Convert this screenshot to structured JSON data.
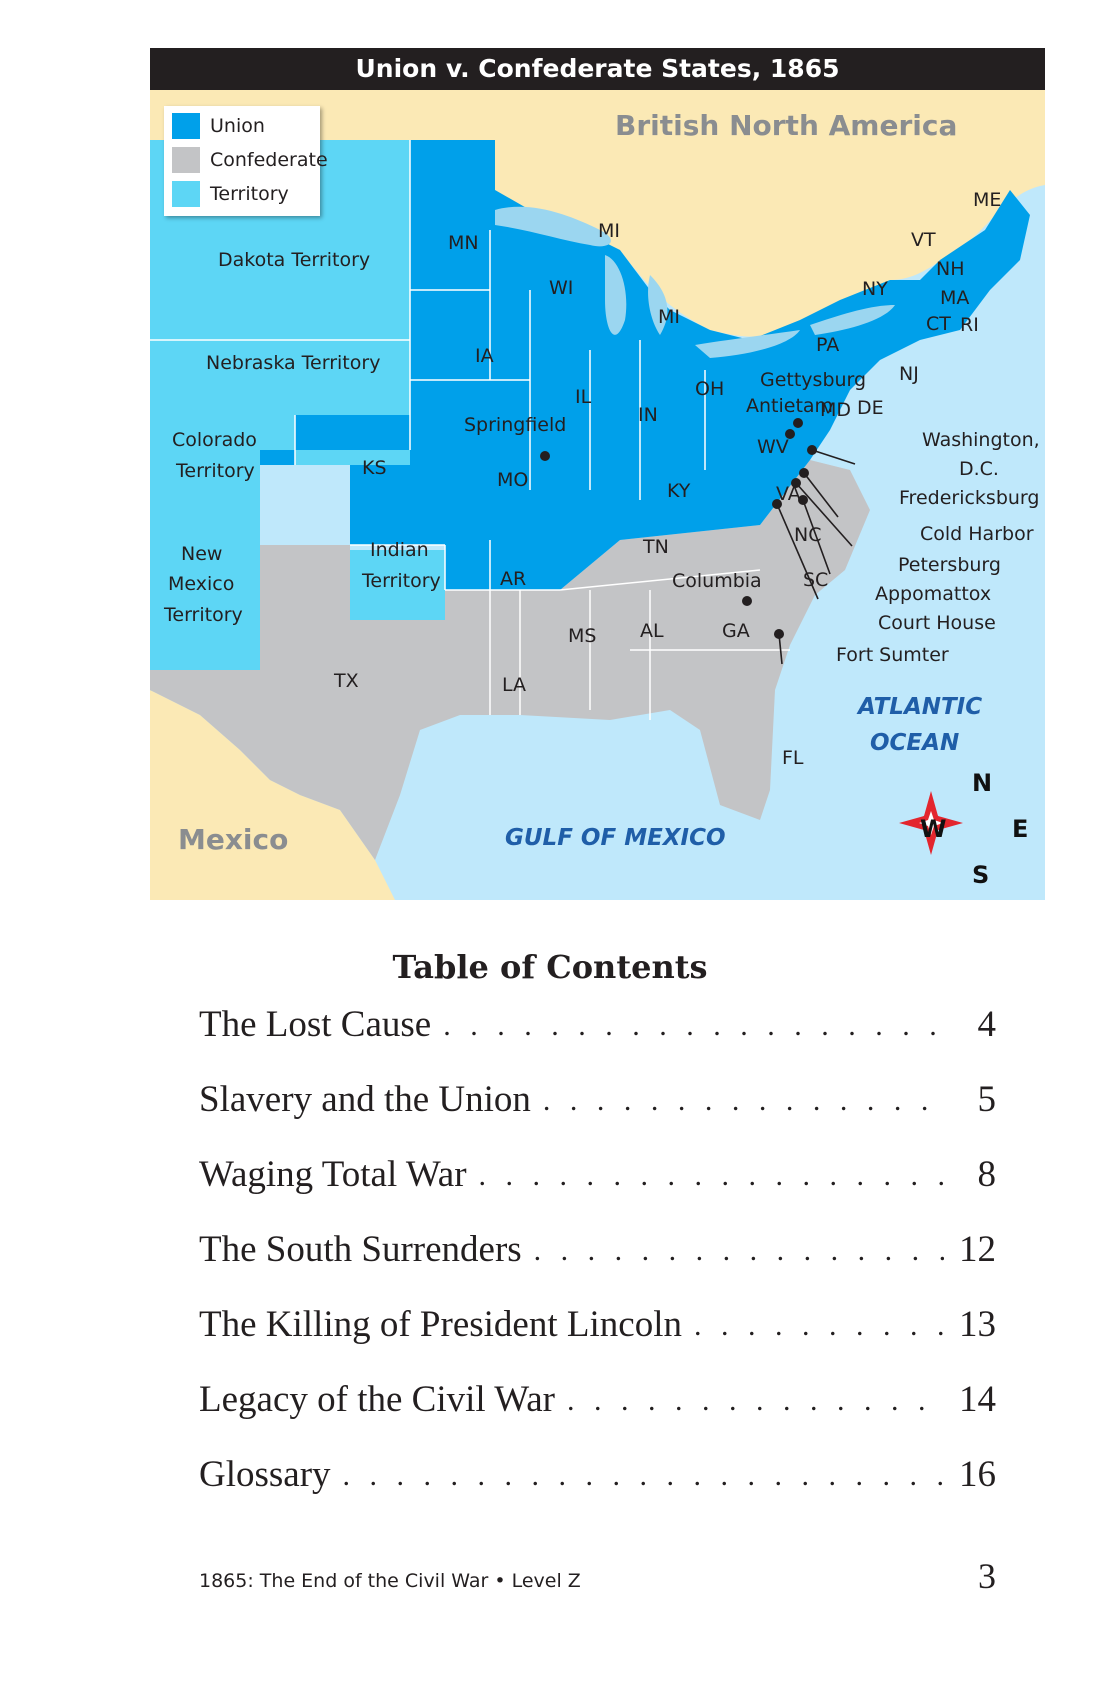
{
  "map": {
    "title": "Union v. Confederate States, 1865",
    "legend": [
      {
        "label": "Union",
        "color": "#00a0ea"
      },
      {
        "label": "Confederate",
        "color": "#c3c4c6"
      },
      {
        "label": "Territory",
        "color": "#5dd6f5"
      }
    ],
    "colors": {
      "ocean": "#bfe8fb",
      "foreign_land": "#fbe9b5",
      "lakes": "#9bd6f0",
      "border": "#ffffff"
    },
    "regions": {
      "british_north_america": "British North America",
      "mexico": "Mexico",
      "atlantic_line1": "ATLANTIC",
      "atlantic_line2": "OCEAN",
      "gulf": "GULF OF MEXICO"
    },
    "territories": {
      "dakota": "Dakota Territory",
      "nebraska": "Nebraska Territory",
      "colorado_line1": "Colorado",
      "colorado_line2": "Territory",
      "new_mexico_line1": "New",
      "new_mexico_line2": "Mexico",
      "new_mexico_line3": "Territory",
      "indian_line1": "Indian",
      "indian_line2": "Territory"
    },
    "states": {
      "MN": "MN",
      "WI": "WI",
      "MI_upper": "MI",
      "MI_lower": "MI",
      "IA": "IA",
      "IL": "IL",
      "IN": "IN",
      "OH": "OH",
      "KS": "KS",
      "MO": "MO",
      "KY": "KY",
      "WV": "WV",
      "PA": "PA",
      "NY": "NY",
      "VT": "VT",
      "NH": "NH",
      "MA": "MA",
      "CT": "CT",
      "RI": "RI",
      "ME": "ME",
      "NJ": "NJ",
      "MD": "MD",
      "DE": "DE",
      "VA": "VA",
      "NC": "NC",
      "SC": "SC",
      "TN": "TN",
      "AR": "AR",
      "LA": "LA",
      "MS": "MS",
      "AL": "AL",
      "GA": "GA",
      "FL": "FL",
      "TX": "TX"
    },
    "places": {
      "springfield": "Springfield",
      "gettysburg": "Gettysburg",
      "antietam": "Antietam",
      "washington_line1": "Washington,",
      "washington_line2": "D.C.",
      "fredericksburg": "Fredericksburg",
      "cold_harbor": "Cold Harbor",
      "petersburg": "Petersburg",
      "appomattox_line1": "Appomattox",
      "appomattox_line2": "Court House",
      "columbia": "Columbia",
      "fort_sumter": "Fort Sumter"
    },
    "compass": {
      "n": "N",
      "s": "S",
      "e": "E",
      "w": "W"
    }
  },
  "toc": {
    "title": "Table of Contents",
    "entries": [
      {
        "text": "The Lost Cause",
        "page": "4"
      },
      {
        "text": "Slavery and the Union",
        "page": "5"
      },
      {
        "text": "Waging Total War",
        "page": "8"
      },
      {
        "text": "The South Surrenders",
        "page": "12"
      },
      {
        "text": "The Killing of President Lincoln",
        "page": "13"
      },
      {
        "text": "Legacy of the Civil War",
        "page": "14"
      },
      {
        "text": "Glossary",
        "page": "16"
      }
    ],
    "leader": ". . . . . . . . . . . . . . . . . . . . . . . . . . . . . . . . . . . . . . . . . . . . ."
  },
  "footer": {
    "book": "1865: The End of the Civil War • Level Z",
    "page_number": "3"
  }
}
